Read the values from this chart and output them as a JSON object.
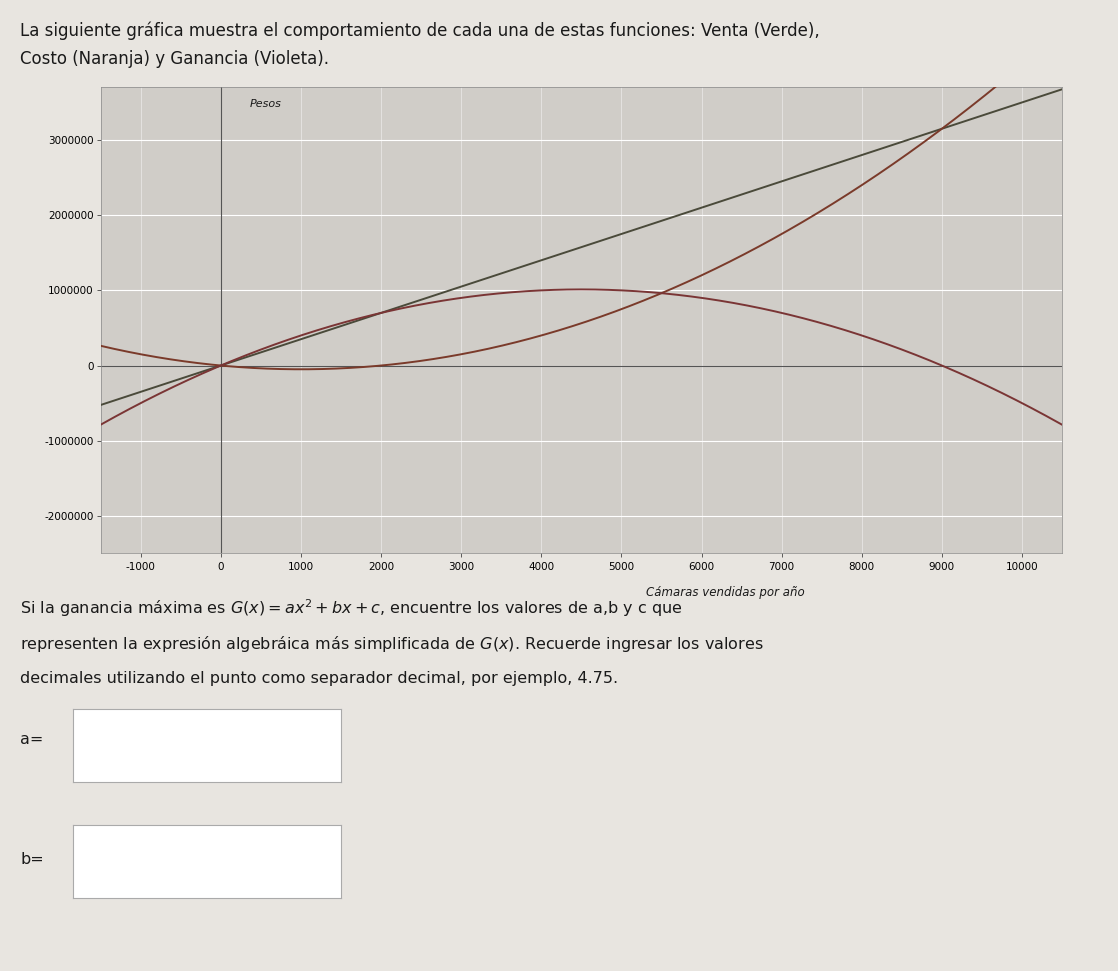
{
  "header_line1": "La siguiente gráfica muestra el comportamiento de cada una de estas funciones: Venta (Verde),",
  "header_line2": "Costo (Naranja) y Ganancia (Violeta).",
  "ylabel": "Pesos",
  "xlabel": "Cámaras vendidas por año",
  "xlim": [
    -1500,
    10500
  ],
  "ylim": [
    -2500000,
    3700000
  ],
  "xticks": [
    -1000,
    0,
    1000,
    2000,
    3000,
    4000,
    5000,
    6000,
    7000,
    8000,
    9000,
    10000
  ],
  "yticks": [
    -2000000,
    -1000000,
    0,
    1000000,
    2000000,
    3000000
  ],
  "venta_color": "#4a4a3a",
  "costo_color": "#7a3a2a",
  "ganancia_color": "#7a3535",
  "chart_bg": "#d0cdc8",
  "page_bg": "#e8e5e0",
  "grid_color": "#ffffff",
  "venta_slope": 350,
  "costo_a": 0.05,
  "costo_b": -100,
  "costo_c": 0,
  "ganancia_a": -0.05,
  "ganancia_b": 450,
  "ganancia_c": 0,
  "question_line1": "Si la ganancia máxima es $G(x)=ax^2+bx+c$, encuentre los valores de a,b y c que",
  "question_line2": "representen la expresión algebráica más simplificada de $G(x)$. Recuerde ingresar los valores",
  "question_line3": "decimales utilizando el punto como separador decimal, por ejemplo, 4.75.",
  "label_a": "a=",
  "label_b": "b="
}
